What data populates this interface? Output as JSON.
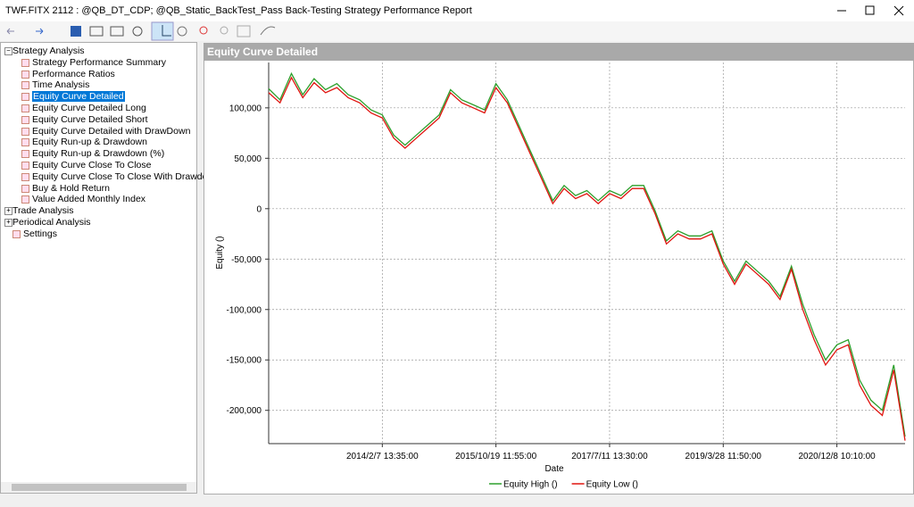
{
  "window": {
    "title": "TWF.FITX 2112 : @QB_DT_CDP; @QB_Static_BackTest_Pass Back-Testing Strategy Performance Report"
  },
  "tree": [
    {
      "label": "Strategy Analysis",
      "children": [
        {
          "label": "Strategy Performance Summary"
        },
        {
          "label": "Performance Ratios"
        },
        {
          "label": "Time Analysis"
        },
        {
          "label": "Equity Curve Detailed",
          "selected": true
        },
        {
          "label": "Equity Curve Detailed Long"
        },
        {
          "label": "Equity Curve Detailed Short"
        },
        {
          "label": "Equity Curve Detailed with DrawDown"
        },
        {
          "label": "Equity Run-up & Drawdown"
        },
        {
          "label": "Equity Run-up & Drawdown (%)"
        },
        {
          "label": "Equity Curve Close To Close"
        },
        {
          "label": "Equity Curve Close To Close With Drawdown"
        },
        {
          "label": "Buy & Hold Return"
        },
        {
          "label": "Value Added Monthly Index"
        }
      ]
    },
    {
      "label": "Trade Analysis",
      "children": []
    },
    {
      "label": "Periodical Analysis",
      "children": []
    },
    {
      "label": "Settings"
    }
  ],
  "chart_data": {
    "type": "line",
    "title": "Equity Curve Detailed",
    "x_label": "Date",
    "y_label": "Equity ()",
    "categories": [
      null,
      null,
      null,
      null,
      null,
      null,
      null,
      null,
      null,
      null,
      "2014/2/7 13:35:00",
      null,
      null,
      null,
      null,
      null,
      null,
      null,
      null,
      null,
      "2015/10/19 11:55:00",
      null,
      null,
      null,
      null,
      null,
      null,
      null,
      null,
      null,
      "2017/7/11 13:30:00",
      null,
      null,
      null,
      null,
      null,
      null,
      null,
      null,
      null,
      "2019/3/28 11:50:00",
      null,
      null,
      null,
      null,
      null,
      null,
      null,
      null,
      null,
      "2020/12/8 10:10:00",
      null,
      null,
      null,
      null,
      null,
      null
    ],
    "series": [
      {
        "name": "Equity High ()",
        "color": "#2ca02c",
        "values": [
          119000,
          108000,
          134000,
          113000,
          129000,
          118000,
          124000,
          113000,
          108000,
          98000,
          93000,
          73000,
          63000,
          73000,
          83000,
          93000,
          118000,
          108000,
          103000,
          98000,
          124000,
          108000,
          83000,
          58000,
          33000,
          8000,
          23000,
          13000,
          18000,
          8000,
          18000,
          13000,
          23000,
          23000,
          -2000,
          -32000,
          -22000,
          -27000,
          -27000,
          -22000,
          -52000,
          -72000,
          -52000,
          -62000,
          -72000,
          -87000,
          -57000,
          -95000,
          -125000,
          -150000,
          -135000,
          -130000,
          -170000,
          -190000,
          -200000,
          -155000,
          -226000
        ]
      },
      {
        "name": "Equity Low ()",
        "color": "#e0140f",
        "values": [
          115000,
          105000,
          130000,
          110000,
          125000,
          115000,
          120000,
          110000,
          105000,
          95000,
          90000,
          70000,
          60000,
          70000,
          80000,
          90000,
          115000,
          105000,
          100000,
          95000,
          120000,
          105000,
          80000,
          55000,
          30000,
          5000,
          20000,
          10000,
          15000,
          5000,
          15000,
          10000,
          20000,
          20000,
          -5000,
          -35000,
          -25000,
          -30000,
          -30000,
          -25000,
          -55000,
          -75000,
          -55000,
          -65000,
          -75000,
          -90000,
          -60000,
          -100000,
          -130000,
          -155000,
          -140000,
          -135000,
          -175000,
          -195000,
          -205000,
          -160000,
          -230000
        ]
      }
    ],
    "ylim": [
      -233000,
      145000
    ],
    "yticks": [
      {
        "value": -200000,
        "label": "-200,000"
      },
      {
        "value": -150000,
        "label": "-150,000"
      },
      {
        "value": -100000,
        "label": "-100,000"
      },
      {
        "value": -50000,
        "label": "-50,000"
      },
      0,
      {
        "value": 50000,
        "label": "50,000"
      },
      {
        "value": 100000,
        "label": "100,000"
      }
    ],
    "grid": true
  }
}
